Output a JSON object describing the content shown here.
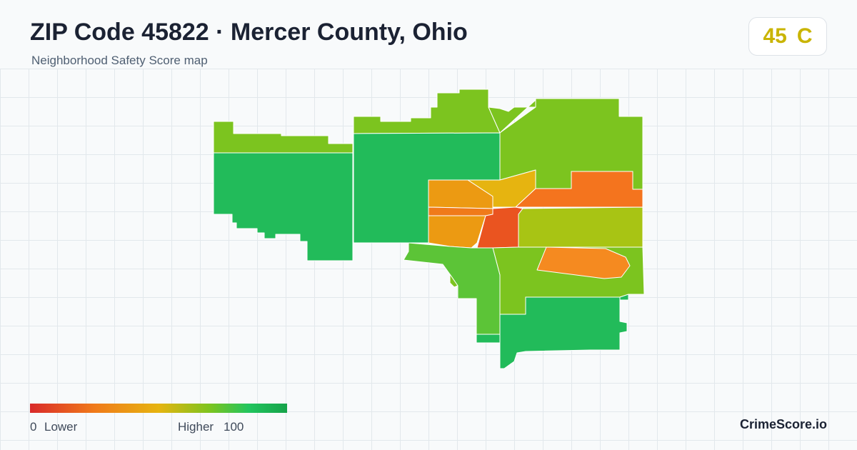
{
  "header": {
    "title": "ZIP Code 45822 · Mercer County, Ohio",
    "subtitle": "Neighborhood Safety Score map"
  },
  "score": {
    "value": "45",
    "grade": "C",
    "color": "#c9b400"
  },
  "legend": {
    "min_value": "0",
    "min_label": "Lower",
    "max_label": "Higher",
    "max_value": "100",
    "colors": [
      "#d92a2a",
      "#f07a1a",
      "#e6b410",
      "#7cc41f",
      "#22c55e",
      "#16a34a"
    ]
  },
  "brand": "CrimeScore.io",
  "map": {
    "regions": [
      {
        "name": "west-north",
        "color": "#7cc41f"
      },
      {
        "name": "west-main",
        "color": "#22bb5a"
      },
      {
        "name": "north-strip",
        "color": "#7cc41f"
      },
      {
        "name": "north-tip",
        "color": "#7cc41f"
      },
      {
        "name": "center-north-large",
        "color": "#22bb5a"
      },
      {
        "name": "northeast-large",
        "color": "#7cc41f"
      },
      {
        "name": "central-yellow",
        "color": "#e6b410"
      },
      {
        "name": "central-orange-west",
        "color": "#ec9a12"
      },
      {
        "name": "central-orange-strip",
        "color": "#f07a1a"
      },
      {
        "name": "central-orange-south",
        "color": "#ec9a12"
      },
      {
        "name": "east-orange",
        "color": "#f4741e"
      },
      {
        "name": "center-red",
        "color": "#ea5420"
      },
      {
        "name": "east-olive",
        "color": "#a8c414"
      },
      {
        "name": "east-lime",
        "color": "#7cc41f"
      },
      {
        "name": "east-inner-orange",
        "color": "#f58a20"
      },
      {
        "name": "south-center-green",
        "color": "#5cc437"
      },
      {
        "name": "south-green",
        "color": "#22bb5a"
      },
      {
        "name": "southeast-green",
        "color": "#22bb5a"
      },
      {
        "name": "southwest-small-green",
        "color": "#22bb5a"
      },
      {
        "name": "south-lime",
        "color": "#7cc41f"
      }
    ]
  }
}
